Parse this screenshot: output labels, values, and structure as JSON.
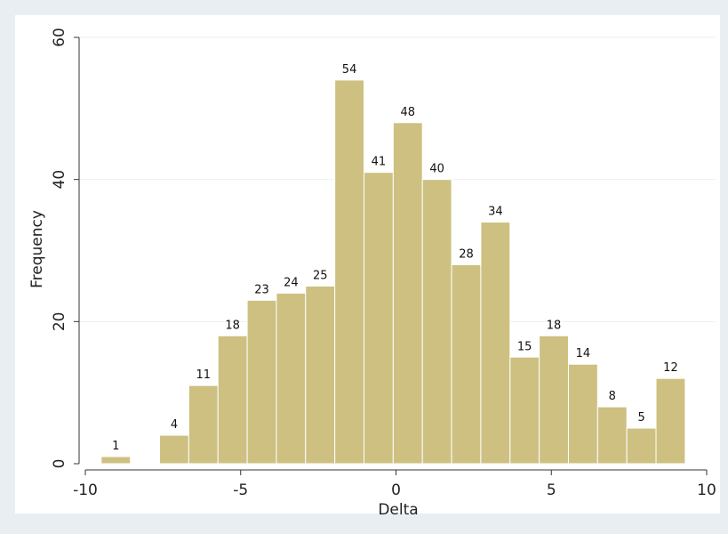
{
  "chart_data": {
    "type": "bar",
    "subtype": "histogram",
    "title": "",
    "xlabel": "Delta",
    "ylabel": "Frequency",
    "xlim": [
      -10,
      10
    ],
    "ylim": [
      0,
      60
    ],
    "x_ticks": [
      -10,
      -5,
      0,
      5,
      10
    ],
    "y_ticks": [
      0,
      20,
      40,
      60
    ],
    "x_tick_labels": [
      "-10",
      "-5",
      "0",
      "5",
      "10"
    ],
    "y_tick_labels": [
      "0",
      "20",
      "40",
      "60"
    ],
    "grid": true,
    "bin_width": 0.94,
    "bins": [
      {
        "x0": -9.49,
        "value": 1
      },
      {
        "x0": -7.61,
        "value": 4
      },
      {
        "x0": -6.67,
        "value": 11
      },
      {
        "x0": -5.73,
        "value": 18
      },
      {
        "x0": -4.79,
        "value": 23
      },
      {
        "x0": -3.85,
        "value": 24
      },
      {
        "x0": -2.91,
        "value": 25
      },
      {
        "x0": -1.97,
        "value": 54
      },
      {
        "x0": -1.03,
        "value": 41
      },
      {
        "x0": -0.09,
        "value": 48
      },
      {
        "x0": 0.85,
        "value": 40
      },
      {
        "x0": 1.79,
        "value": 28
      },
      {
        "x0": 2.73,
        "value": 34
      },
      {
        "x0": 3.67,
        "value": 15
      },
      {
        "x0": 4.61,
        "value": 18
      },
      {
        "x0": 5.55,
        "value": 14
      },
      {
        "x0": 6.49,
        "value": 8
      },
      {
        "x0": 7.43,
        "value": 5
      },
      {
        "x0": 8.37,
        "value": 12
      }
    ],
    "colors": {
      "bar_fill": "#cdc081",
      "bar_stroke": "#ffffff",
      "plot_background": "#ffffff",
      "outer_background": "#e8eef2",
      "gridline": "#eaf0f4",
      "axis": "#333333"
    }
  }
}
